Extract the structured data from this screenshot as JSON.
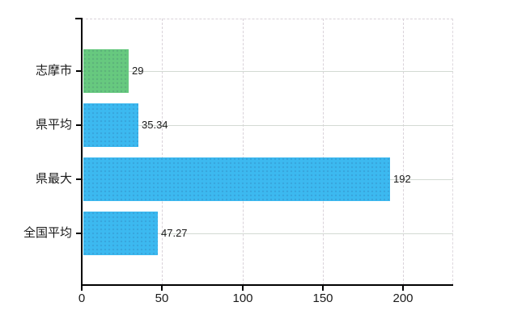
{
  "chart_data": {
    "type": "bar",
    "orientation": "horizontal",
    "title": "",
    "xlabel": "",
    "ylabel": "",
    "categories": [
      "志摩市",
      "県平均",
      "県最大",
      "全国平均"
    ],
    "values": [
      29,
      35.34,
      192,
      47.27
    ],
    "value_labels": [
      "29",
      "35.34",
      "192",
      "47.27"
    ],
    "bar_colors": [
      "#67c97f",
      "#3cb9f0",
      "#3cb9f0",
      "#3cb9f0"
    ],
    "x_ticks": [
      0,
      50,
      100,
      150,
      200
    ],
    "x_tick_labels": [
      "0",
      "50",
      "100",
      "150",
      "200"
    ],
    "xlim": [
      0,
      231
    ],
    "grid": "on",
    "legend": "none",
    "colors": {
      "axis": "#000000",
      "horizontal_gridline": "#d3dad3",
      "vertical_gridline_dashed": "#d9d2d9",
      "text": "#1a1a1a",
      "background": "#ffffff"
    }
  }
}
